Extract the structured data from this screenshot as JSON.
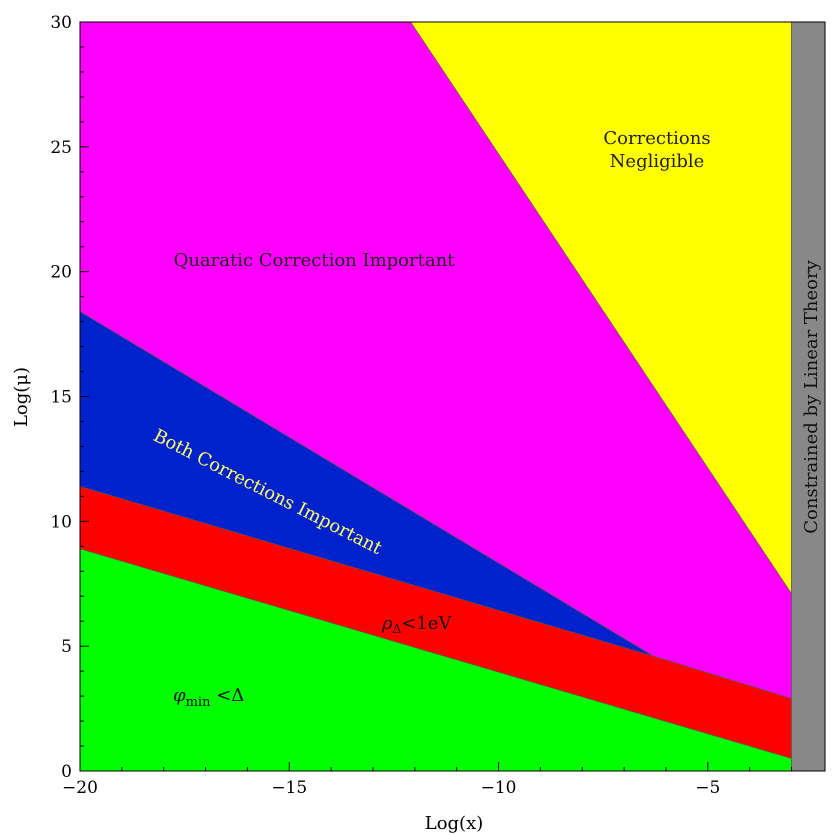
{
  "chart_data": {
    "type": "area",
    "title": "",
    "xlabel": "Log(x)",
    "ylabel": "Log(μ)",
    "xlim": [
      -20,
      -2.2
    ],
    "ylim": [
      0,
      30
    ],
    "xticks": [
      "-20",
      "-15",
      "-10",
      "-5"
    ],
    "yticks": [
      "0",
      "5",
      "10",
      "15",
      "20",
      "25",
      "30"
    ],
    "grid": false,
    "regions": [
      {
        "name": "Corrections Negligible",
        "color": "#ffff00",
        "polygon": [
          [
            -12.1,
            30
          ],
          [
            -3,
            30
          ],
          [
            -3,
            7.1
          ]
        ]
      },
      {
        "name": "Quaratic Correction Important",
        "color": "#ff00ff",
        "polygon": [
          [
            -20,
            30
          ],
          [
            -12.1,
            30
          ],
          [
            -3,
            7.1
          ],
          [
            -3,
            2.9
          ],
          [
            -6.3,
            4.6
          ],
          [
            -20,
            18.4
          ]
        ]
      },
      {
        "name": "Both Corrections Important",
        "color": "#0022cc",
        "polygon": [
          [
            -20,
            18.4
          ],
          [
            -6.3,
            4.6
          ],
          [
            -20,
            11.4
          ]
        ]
      },
      {
        "name": "ρΔ<1eV",
        "color": "#ff0000",
        "polygon": [
          [
            -20,
            11.4
          ],
          [
            -6.3,
            4.6
          ],
          [
            -3,
            2.9
          ],
          [
            -3,
            0.5
          ],
          [
            -20,
            8.9
          ]
        ]
      },
      {
        "name": "φmin<Δ",
        "color": "#00ff00",
        "polygon": [
          [
            -20,
            8.9
          ],
          [
            -3,
            0.5
          ],
          [
            -3,
            0
          ],
          [
            -20,
            0
          ]
        ]
      },
      {
        "name": "Constrained by Linear Theory",
        "color": "#888888",
        "polygon": [
          [
            -3,
            0
          ],
          [
            -2.2,
            0
          ],
          [
            -2.2,
            30
          ],
          [
            -3,
            30
          ]
        ]
      }
    ],
    "annotations": {
      "negligible_1": "Corrections",
      "negligible_2": "Negligible",
      "quadratic": "Quaratic Correction Important",
      "both": "Both Corrections Important",
      "rho": "ρ",
      "rho_sub": "Δ",
      "rho_rest": "<1eV",
      "phi": "φ",
      "phi_sub": "min",
      "phi_rest": " <Δ",
      "linear": "Constrained by Linear Theory"
    }
  }
}
